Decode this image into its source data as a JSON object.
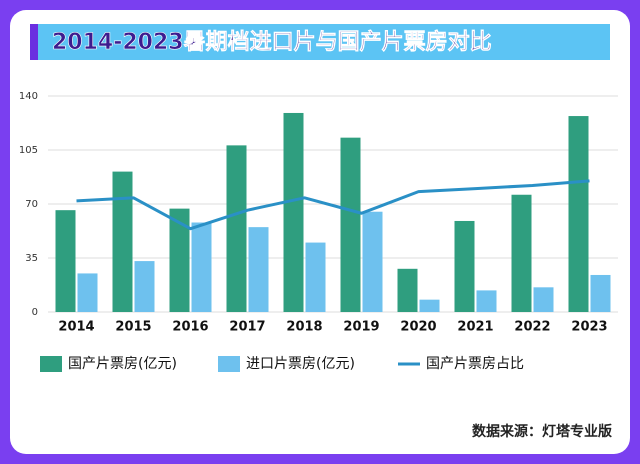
{
  "chart_data": {
    "type": "bar-line",
    "title": "2014-2023暑期档进口片与国产片票房对比",
    "source": "数据来源：灯塔专业版",
    "categories": [
      "2014",
      "2015",
      "2016",
      "2017",
      "2018",
      "2019",
      "2020",
      "2021",
      "2022",
      "2023"
    ],
    "series": [
      {
        "name": "国产片票房(亿元)",
        "type": "bar",
        "color": "#2f9e7f",
        "values": [
          66,
          91,
          67,
          108,
          129,
          113,
          28,
          59,
          76,
          127
        ]
      },
      {
        "name": "进口片票房(亿元)",
        "type": "bar",
        "color": "#6ec1ee",
        "values": [
          25,
          33,
          58,
          55,
          45,
          65,
          8,
          14,
          16,
          24
        ]
      },
      {
        "name": "国产片票房占比",
        "type": "line",
        "color": "#2a90c6",
        "values": [
          72,
          74,
          54,
          66,
          74,
          64,
          78,
          80,
          82,
          85
        ]
      }
    ],
    "ylim": [
      0,
      140
    ],
    "yticks": [
      0,
      35,
      70,
      105,
      140
    ],
    "grid": true,
    "legend": "bottom"
  }
}
